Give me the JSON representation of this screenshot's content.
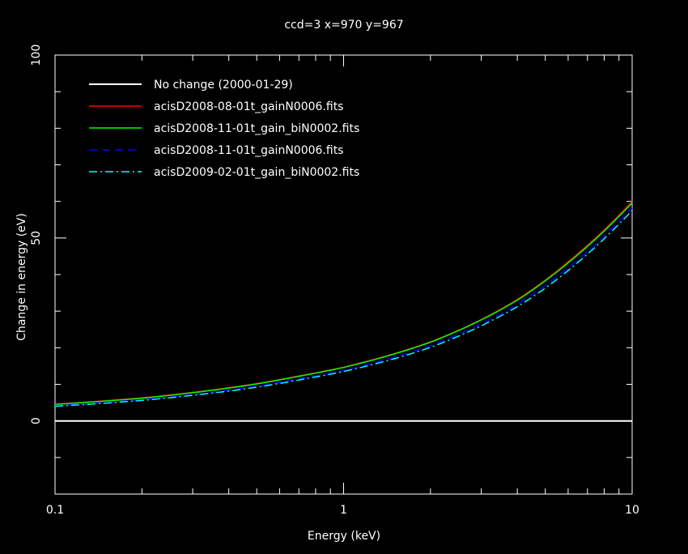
{
  "chart_data": {
    "type": "line",
    "title": "ccd=3 x=970 y=967",
    "xlabel": "Energy (keV)",
    "ylabel": "Change in energy (eV)",
    "xscale": "log",
    "xlim": [
      0.1,
      10
    ],
    "ylim": [
      -20,
      100
    ],
    "x_ticks": [
      {
        "value": 0.1,
        "label": "0.1"
      },
      {
        "value": 1,
        "label": "1"
      },
      {
        "value": 10,
        "label": "10"
      }
    ],
    "y_ticks": [
      {
        "value": 0,
        "label": "0"
      },
      {
        "value": 50,
        "label": "50"
      },
      {
        "value": 100,
        "label": "100"
      }
    ],
    "legend_position": "top-left",
    "background": "#000000",
    "foreground": "#ffffff",
    "x": [
      0.1,
      0.2,
      0.3,
      0.5,
      0.7,
      1,
      1.5,
      2,
      3,
      4,
      5,
      6,
      7,
      8,
      9,
      10
    ],
    "series": [
      {
        "name": "No change (2000-01-29)",
        "color": "#ffffff",
        "dash": "solid",
        "values": [
          0,
          0,
          0,
          0,
          0,
          0,
          0,
          0,
          0,
          0,
          0,
          0,
          0,
          0,
          0,
          0
        ]
      },
      {
        "name": "acisD2008-08-01t_gainN0006.fits",
        "color": "#ff0000",
        "dash": "solid",
        "values": [
          4.6,
          6.3,
          7.8,
          10.2,
          12.3,
          14.7,
          18.4,
          21.6,
          27.7,
          33.2,
          38.5,
          43.5,
          48.0,
          52.2,
          56.2,
          60.0
        ]
      },
      {
        "name": "acisD2008-11-01t_gain_biN0002.fits",
        "color": "#00ff00",
        "dash": "solid",
        "values": [
          4.5,
          6.2,
          7.7,
          10.1,
          12.2,
          14.6,
          18.3,
          21.5,
          27.6,
          33.0,
          38.3,
          43.2,
          47.7,
          51.9,
          55.9,
          59.6
        ]
      },
      {
        "name": "acisD2008-11-01t_gainN0006.fits",
        "color": "#0000ff",
        "dash": "dashed",
        "values": [
          4.2,
          5.8,
          7.2,
          9.5,
          11.5,
          13.8,
          17.4,
          20.6,
          26.5,
          31.8,
          37.0,
          41.8,
          46.3,
          50.5,
          54.5,
          58.2
        ]
      },
      {
        "name": "acisD2009-02-01t_gain_biN0002.fits",
        "color": "#00ffff",
        "dash": "dashdot",
        "values": [
          4.0,
          5.6,
          7.0,
          9.2,
          11.2,
          13.5,
          17.0,
          20.1,
          26.0,
          31.2,
          36.3,
          41.1,
          45.6,
          49.8,
          53.8,
          57.5
        ]
      }
    ]
  }
}
